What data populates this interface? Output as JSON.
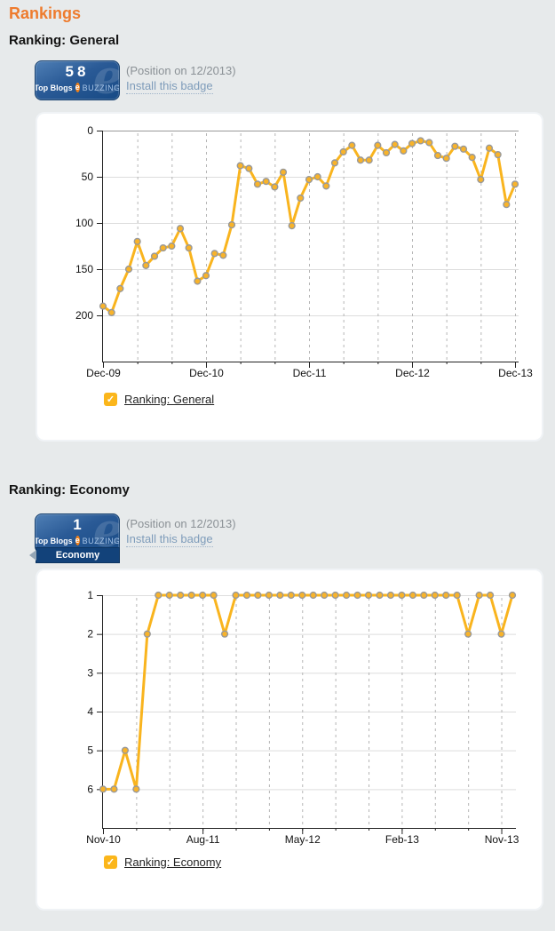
{
  "page_title": "Rankings",
  "icons": {
    "check": "✓"
  },
  "colors": {
    "title_orange": "#ee7b2d",
    "line_yellow": "#f9b41e",
    "marker_fill": "#f8b32a",
    "marker_stroke": "#999999",
    "badge_blue_dark": "#174a85",
    "ribbon_blue": "#12427a",
    "note_gray": "#8b9196",
    "link_blue_gray": "#7e9cba",
    "checkbox_yellow": "#fbb61b",
    "grid_light": "#dddddd",
    "grid_dashed": "#b5b5b5"
  },
  "sections": [
    {
      "heading": "Ranking: General",
      "badge": {
        "value": "58",
        "top_blogs": "Top Blogs",
        "logo_letter": "e",
        "brand": "BUZZING",
        "watermark": "e"
      },
      "position_note": "(Position on 12/2013)",
      "install_link": "Install this badge",
      "legend_label": "Ranking: General"
    },
    {
      "heading": "Ranking: Economy",
      "badge": {
        "value": "1",
        "top_blogs": "Top Blogs",
        "logo_letter": "e",
        "brand": "BUZZING",
        "watermark": "e",
        "ribbon": "Economy"
      },
      "position_note": "(Position on 12/2013)",
      "install_link": "Install this badge",
      "legend_label": "Ranking: Economy"
    }
  ],
  "chart_data": [
    {
      "type": "line",
      "title": "Ranking: General",
      "legend": "Ranking: General",
      "x_interval": "monthly",
      "x_start": "Dec-09",
      "x_end": "Dec-13",
      "x_tick_labels": [
        "Dec-09",
        "Dec-10",
        "Dec-11",
        "Dec-12",
        "Dec-13"
      ],
      "x_tick_month_indices": [
        0,
        12,
        24,
        36,
        48
      ],
      "minor_grid_month_step": 4,
      "y_inverted": true,
      "ylim": [
        0,
        250
      ],
      "yticks": [
        0,
        50,
        100,
        150,
        200
      ],
      "ytick_labels": [
        "0",
        "50",
        "100",
        "150",
        "200"
      ],
      "values": [
        190,
        197,
        171,
        150,
        120,
        146,
        136,
        127,
        125,
        106,
        127,
        163,
        157,
        133,
        135,
        102,
        38,
        41,
        58,
        55,
        61,
        45,
        103,
        73,
        53,
        50,
        60,
        35,
        23,
        16,
        32,
        32,
        16,
        24,
        15,
        22,
        14,
        11,
        13,
        27,
        30,
        17,
        20,
        29,
        53,
        19,
        26,
        80,
        58
      ]
    },
    {
      "type": "line",
      "title": "Ranking: Economy",
      "legend": "Ranking: Economy",
      "x_interval": "monthly",
      "x_start": "Nov-10",
      "x_end": "Dec-13",
      "x_tick_labels": [
        "Nov-10",
        "Aug-11",
        "May-12",
        "Feb-13",
        "Nov-13"
      ],
      "x_tick_month_indices": [
        0,
        9,
        18,
        27,
        36
      ],
      "minor_grid_month_step": 3,
      "y_inverted": true,
      "ylim": [
        1,
        7
      ],
      "yticks": [
        1,
        2,
        3,
        4,
        5,
        6
      ],
      "ytick_labels": [
        "1",
        "2",
        "3",
        "4",
        "5",
        "6"
      ],
      "values": [
        6,
        6,
        5,
        6,
        2,
        1,
        1,
        1,
        1,
        1,
        1,
        2,
        1,
        1,
        1,
        1,
        1,
        1,
        1,
        1,
        1,
        1,
        1,
        1,
        1,
        1,
        1,
        1,
        1,
        1,
        1,
        1,
        1,
        2,
        1,
        1,
        2,
        1
      ]
    }
  ]
}
